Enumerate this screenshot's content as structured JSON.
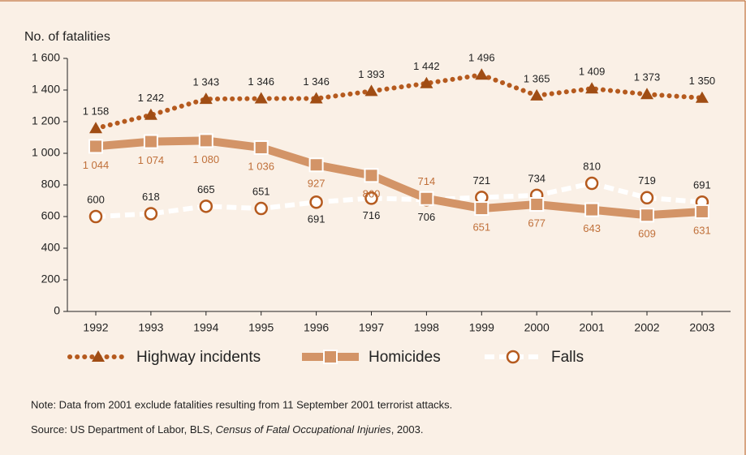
{
  "chart_data": {
    "type": "line",
    "title": "No. of fatalities",
    "categories": [
      "1992",
      "1993",
      "1994",
      "1995",
      "1996",
      "1997",
      "1998",
      "1999",
      "2000",
      "2001",
      "2002",
      "2003"
    ],
    "series": [
      {
        "name": "Highway incidents",
        "color": "#b55a1e",
        "values": [
          1158,
          1242,
          1343,
          1346,
          1346,
          1393,
          1442,
          1496,
          1365,
          1409,
          1373,
          1350
        ],
        "value_labels": [
          "1 158",
          "1 242",
          "1 343",
          "1 346",
          "1 346",
          "1 393",
          "1 442",
          "1 496",
          "1 365",
          "1 409",
          "1 373",
          "1 350"
        ]
      },
      {
        "name": "Homicides",
        "color": "#d39467",
        "values": [
          1044,
          1074,
          1080,
          1036,
          927,
          860,
          714,
          651,
          677,
          643,
          609,
          631
        ],
        "value_labels": [
          "1 044",
          "1 074",
          "1 080",
          "1 036",
          "927",
          "860",
          "714",
          "651",
          "677",
          "643",
          "609",
          "631"
        ]
      },
      {
        "name": "Falls",
        "color": "#ffffff",
        "values": [
          600,
          618,
          665,
          651,
          691,
          716,
          706,
          721,
          734,
          810,
          719,
          691
        ]
      }
    ],
    "ylim": [
      0,
      1600
    ],
    "yticks": [
      0,
      200,
      400,
      600,
      800,
      {
        "value": 1000,
        "label": "1 000"
      },
      {
        "value": 1200,
        "label": "1 200"
      },
      {
        "value": 1400,
        "label": "1 400"
      },
      {
        "value": 1600,
        "label": "1 600"
      }
    ],
    "grid": false,
    "note": "Note: Data from 2001 exclude fatalities resulting from 11 September 2001 terrorist attacks.",
    "source": [
      "Source: US Department of Labor, BLS, ",
      "Census of Fatal Occupational Injuries",
      ", 2003."
    ]
  }
}
